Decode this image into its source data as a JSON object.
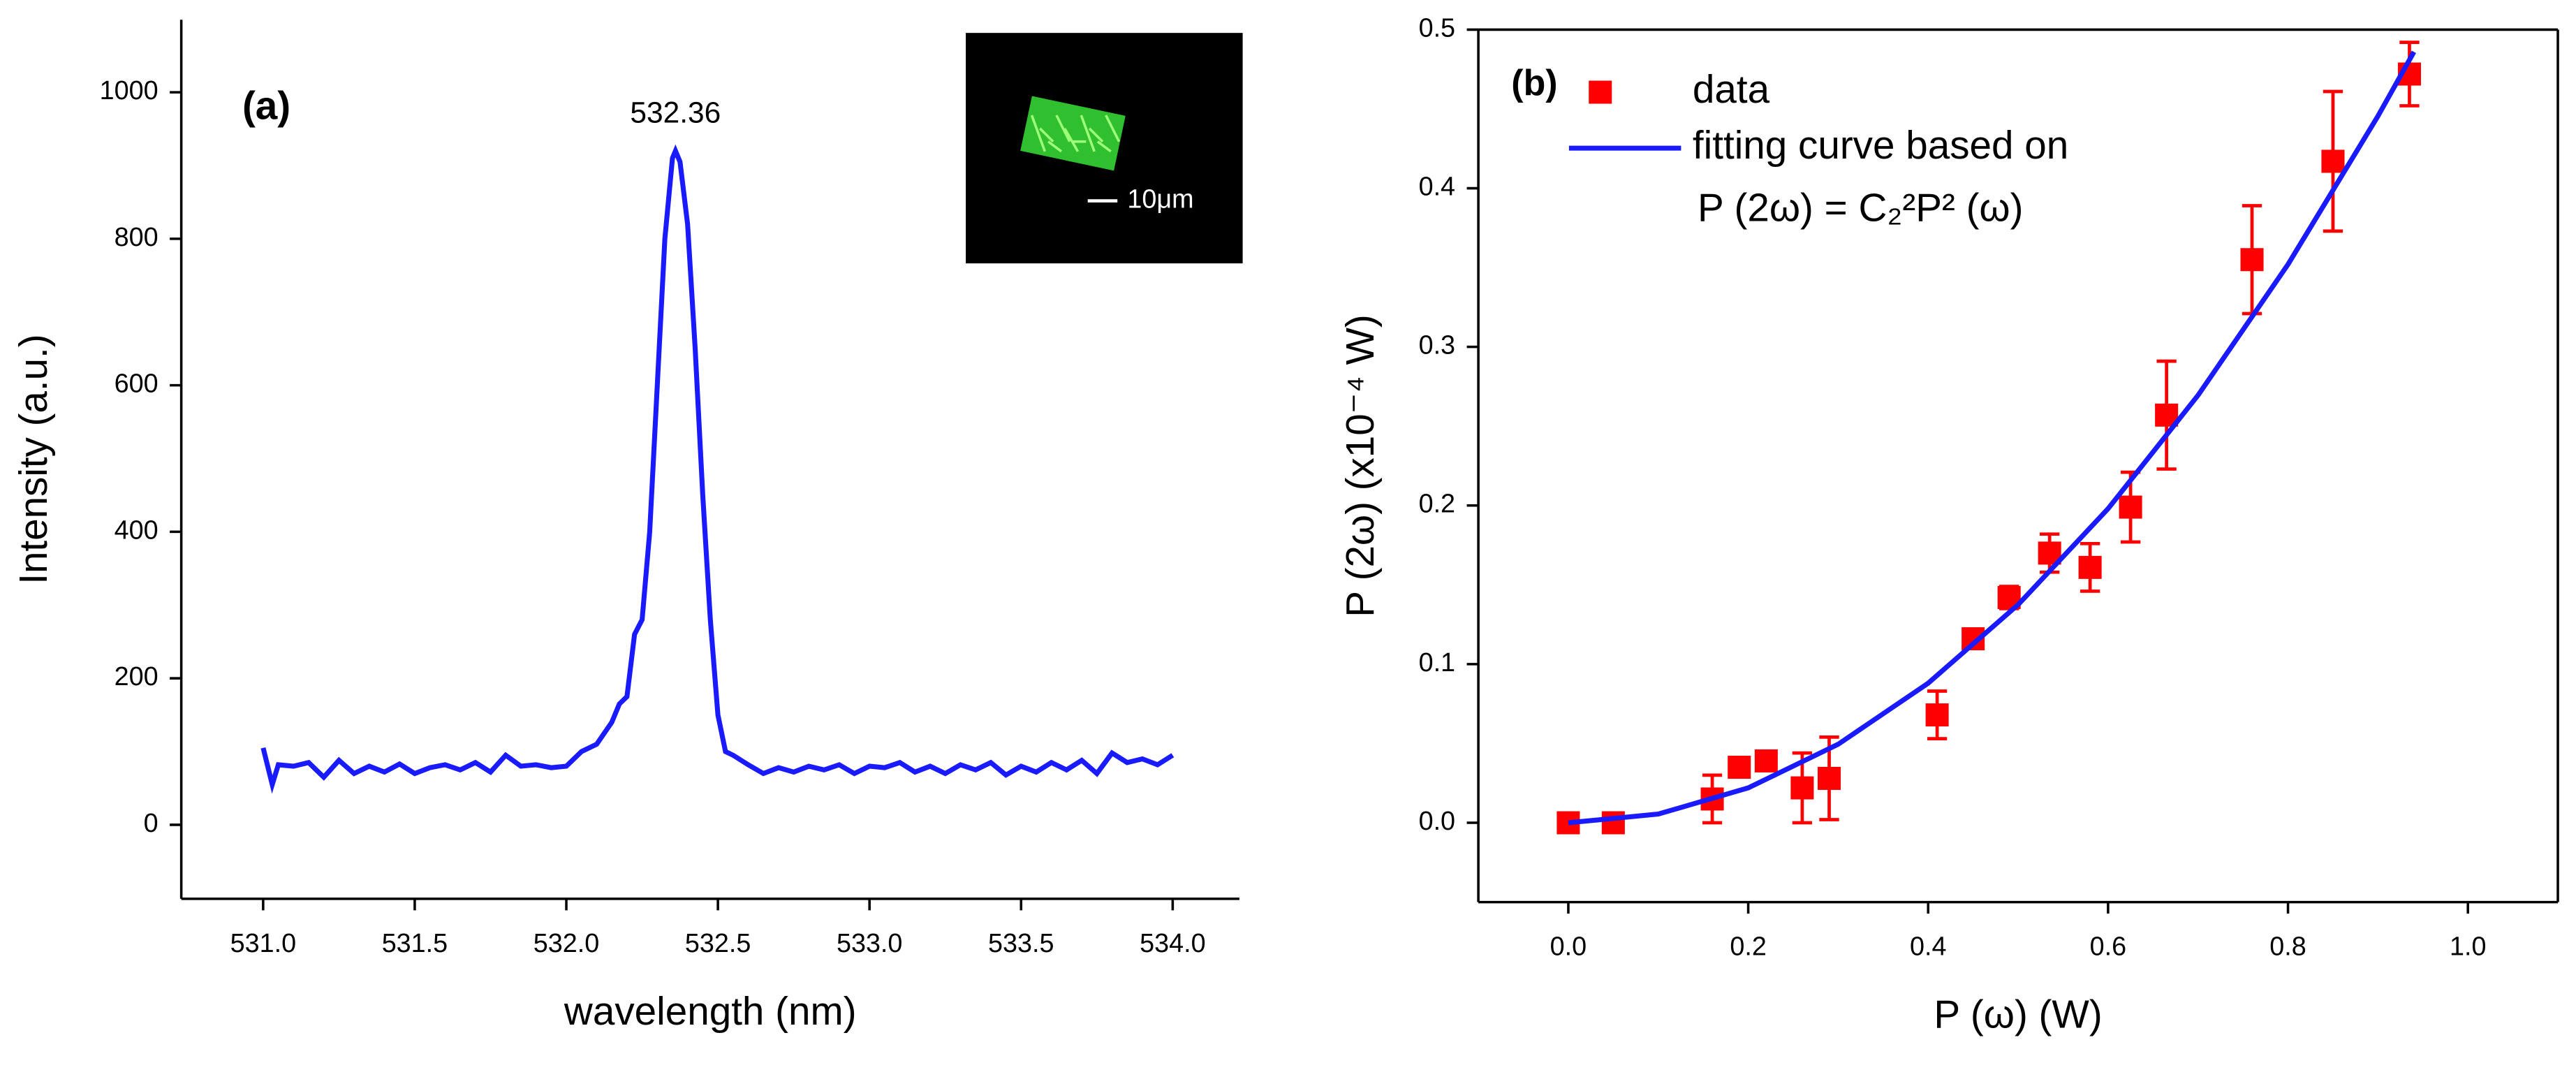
{
  "chart_data": [
    {
      "type": "line",
      "panel_label": "(a)",
      "annotation": "532.36",
      "inset_label": "10μm",
      "xlabel": "wavelength (nm)",
      "ylabel": "Intensity (a.u.)",
      "color": "#1a1aff",
      "x": [
        531.0,
        531.03,
        531.05,
        531.1,
        531.15,
        531.2,
        531.25,
        531.3,
        531.35,
        531.4,
        531.45,
        531.5,
        531.55,
        531.6,
        531.65,
        531.7,
        531.75,
        531.8,
        531.85,
        531.9,
        531.95,
        532.0,
        532.05,
        532.1,
        532.15,
        532.175,
        532.2,
        532.225,
        532.25,
        532.275,
        532.3,
        532.325,
        532.35,
        532.36,
        532.375,
        532.4,
        532.425,
        532.45,
        532.475,
        532.5,
        532.525,
        532.55,
        532.6,
        532.65,
        532.7,
        532.75,
        532.8,
        532.85,
        532.9,
        532.95,
        533.0,
        533.05,
        533.1,
        533.15,
        533.2,
        533.25,
        533.3,
        533.35,
        533.4,
        533.45,
        533.5,
        533.55,
        533.6,
        533.65,
        533.7,
        533.75,
        533.8,
        533.85,
        533.9,
        533.95,
        534.0
      ],
      "values": [
        105,
        55,
        82,
        80,
        85,
        65,
        88,
        70,
        80,
        72,
        83,
        70,
        78,
        82,
        75,
        85,
        72,
        95,
        80,
        82,
        78,
        80,
        100,
        110,
        140,
        165,
        175,
        260,
        280,
        400,
        600,
        800,
        910,
        920,
        905,
        820,
        650,
        450,
        280,
        150,
        100,
        95,
        82,
        70,
        78,
        72,
        80,
        75,
        82,
        70,
        80,
        78,
        85,
        72,
        80,
        70,
        82,
        75,
        85,
        68,
        80,
        72,
        85,
        75,
        88,
        70,
        98,
        85,
        90,
        82,
        95
      ],
      "xlim": [
        530.73,
        534.22
      ],
      "xticks": [
        {
          "value": 531,
          "label": "531.0"
        },
        531.5,
        {
          "value": 532,
          "label": "532.0"
        },
        532.5,
        {
          "value": 533,
          "label": "533.0"
        },
        533.5,
        {
          "value": 534,
          "label": "534.0"
        }
      ],
      "ylim": [
        -101,
        1099
      ],
      "yticks": [
        0,
        200,
        400,
        600,
        800,
        1000
      ]
    },
    {
      "type": "scatter",
      "panel_label": "(b)",
      "annotation": "P (2ω) = C₂²P² (ω)",
      "xlabel": "P (ω) (W)",
      "ylabel": "P (2ω) (x10⁻⁴ W)",
      "xlim": [
        -0.1,
        1.1
      ],
      "xticks": [
        {
          "value": 0,
          "label": "0.0"
        },
        0.2,
        0.4,
        0.6,
        0.8,
        {
          "value": 1,
          "label": "1.0"
        }
      ],
      "ylim": [
        -0.05,
        0.5
      ],
      "yticks": [
        {
          "value": 0,
          "label": "0.0"
        },
        0.1,
        0.2,
        0.3,
        0.4,
        0.5
      ],
      "series": [
        {
          "name": "data",
          "color": "#ff0000",
          "x": [
            0.0,
            0.05,
            0.16,
            0.19,
            0.22,
            0.26,
            0.29,
            0.41,
            0.45,
            0.49,
            0.535,
            0.58,
            0.625,
            0.665,
            0.76,
            0.85,
            0.935
          ],
          "values": [
            0.0,
            0.0,
            0.015,
            0.035,
            0.039,
            0.022,
            0.028,
            0.068,
            0.116,
            0.142,
            0.17,
            0.161,
            0.199,
            0.257,
            0.355,
            0.417,
            0.472
          ],
          "errors": [
            0,
            0,
            0.015,
            0,
            0,
            0.022,
            0.026,
            0.015,
            0,
            0.007,
            0.012,
            0.015,
            0.022,
            0.034,
            0.034,
            0.044,
            0.02
          ]
        },
        {
          "name": "fitting curve based on",
          "color": "#1a1aff",
          "x": [
            0,
            0.1,
            0.2,
            0.3,
            0.4,
            0.5,
            0.6,
            0.7,
            0.8,
            0.9,
            0.94
          ],
          "values": [
            0,
            0.0055,
            0.022,
            0.0495,
            0.088,
            0.1375,
            0.198,
            0.2695,
            0.352,
            0.4455,
            0.486
          ]
        }
      ]
    }
  ]
}
